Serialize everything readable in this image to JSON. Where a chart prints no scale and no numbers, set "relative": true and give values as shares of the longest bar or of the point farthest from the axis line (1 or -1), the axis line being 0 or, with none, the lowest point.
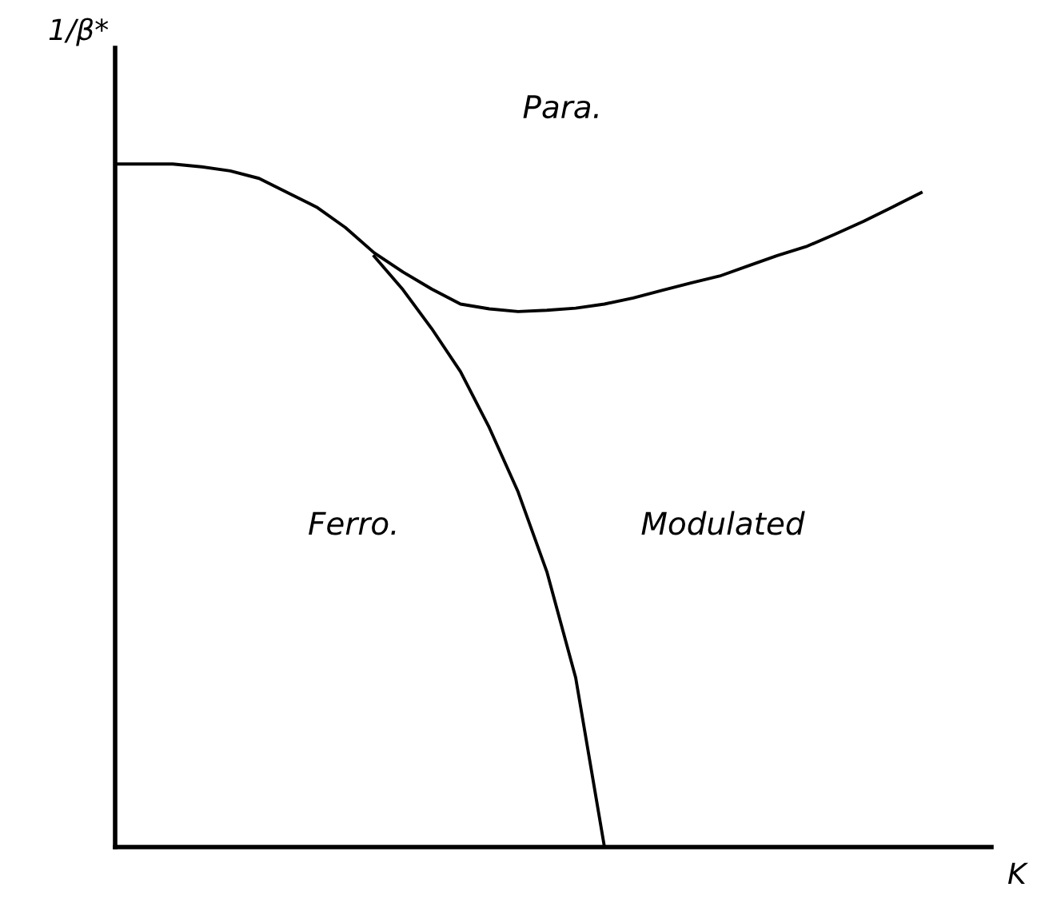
{
  "chart_data": {
    "type": "line",
    "relative": true,
    "xlabel": "K",
    "ylabel": "1/β*",
    "annotations": [
      "Para.",
      "Ferro.",
      "Modulated"
    ],
    "marker": "none",
    "line_style": "solid",
    "categories": [
      null,
      null,
      null,
      null,
      null,
      null,
      null,
      null,
      null,
      null,
      null,
      null,
      null,
      null,
      null,
      null,
      null,
      null,
      null,
      null,
      null,
      null,
      null,
      null,
      null,
      null,
      null,
      null,
      null
    ],
    "series": [
      {
        "color": "#000000",
        "values": [
          1.0,
          1.0,
          1.0,
          0.996,
          0.99,
          0.979,
          0.958,
          0.937,
          0.907,
          0.87,
          0.842,
          0.817,
          0.795,
          0.788,
          0.784,
          0.786,
          0.789,
          0.795,
          0.804,
          0.815,
          0.826,
          0.836,
          0.851,
          0.866,
          0.879,
          0.897,
          0.916,
          0.937,
          0.958
        ]
      },
      {
        "color": "#000000",
        "values": [
          null,
          null,
          null,
          null,
          null,
          null,
          null,
          null,
          null,
          0.865,
          0.816,
          0.759,
          0.696,
          0.614,
          0.52,
          0.403,
          0.248,
          0,
          null,
          null,
          null,
          null,
          null,
          null,
          null,
          null,
          null,
          null,
          null
        ]
      }
    ]
  }
}
